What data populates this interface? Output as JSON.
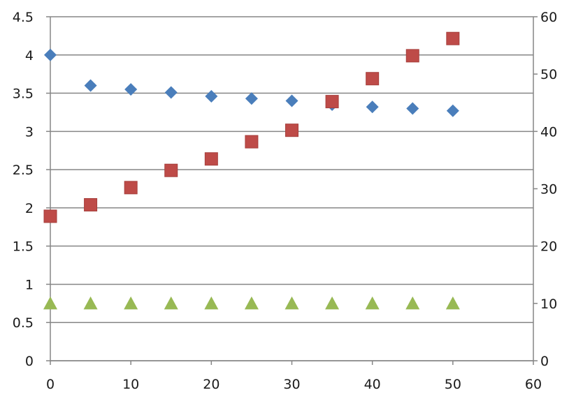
{
  "chart_data": {
    "type": "scatter",
    "title": "",
    "xlabel": "",
    "ylabel": "",
    "y2label": "",
    "xlim": [
      0,
      60
    ],
    "ylim": [
      0,
      4.5
    ],
    "y2lim": [
      0,
      60
    ],
    "x_ticks": [
      "0",
      "10",
      "20",
      "30",
      "40",
      "50",
      "60"
    ],
    "y_ticks": [
      "0",
      "0.5",
      "1",
      "1.5",
      "2",
      "2.5",
      "3",
      "3.5",
      "4",
      "4.5"
    ],
    "y2_ticks": [
      "0",
      "10",
      "20",
      "30",
      "40",
      "50",
      "60"
    ],
    "grid": "horizontal",
    "legend": "none",
    "series": [
      {
        "axis": "left",
        "marker": "diamond",
        "color": "#4a7ebb",
        "x": [
          0,
          5,
          10,
          15,
          20,
          25,
          30,
          35,
          40,
          45,
          50
        ],
        "y": [
          4.0,
          3.6,
          3.55,
          3.51,
          3.46,
          3.43,
          3.4,
          3.35,
          3.32,
          3.3,
          3.27
        ]
      },
      {
        "axis": "right",
        "marker": "square",
        "color": "#be4b48",
        "x": [
          0,
          5,
          10,
          15,
          20,
          25,
          30,
          35,
          40,
          45,
          50
        ],
        "y": [
          25.2,
          27.2,
          30.2,
          33.2,
          35.2,
          38.2,
          40.2,
          45.2,
          49.2,
          53.2,
          56.2
        ]
      },
      {
        "axis": "left",
        "marker": "triangle",
        "color": "#98b954",
        "x": [
          0,
          5,
          10,
          15,
          20,
          25,
          30,
          35,
          40,
          45,
          50
        ],
        "y": [
          0.75,
          0.75,
          0.75,
          0.75,
          0.75,
          0.75,
          0.75,
          0.75,
          0.75,
          0.75,
          0.75
        ]
      }
    ]
  }
}
